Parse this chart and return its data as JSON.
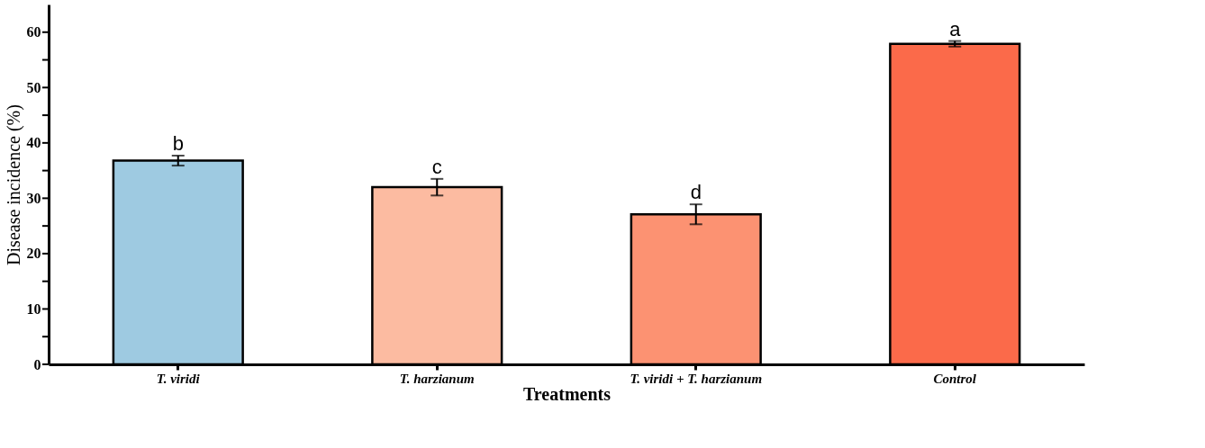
{
  "chart_data": {
    "type": "bar",
    "xlabel": "Treatments",
    "ylabel": "Disease incidence (%)",
    "categories": [
      "T. viridi",
      "T. harzianum",
      "T. viridi + T. harzianum",
      "Control"
    ],
    "values": [
      36.8,
      32.0,
      27.1,
      57.9
    ],
    "errors": [
      0.9,
      1.5,
      1.8,
      0.5
    ],
    "colors": [
      "#9ecae1",
      "#fcbba1",
      "#fc9272",
      "#fb6a4a"
    ],
    "ylim": [
      0,
      65
    ],
    "yticks": [
      0,
      {
        "value": 5,
        "label": null
      },
      10,
      {
        "value": 15,
        "label": null
      },
      20,
      {
        "value": 25,
        "label": null
      },
      30,
      {
        "value": 35,
        "label": null
      },
      40,
      {
        "value": 45,
        "label": null
      },
      50,
      {
        "value": 55,
        "label": null
      },
      60
    ],
    "grid": false,
    "annotations": [
      {
        "text": "b",
        "x": "T. viridi",
        "y": 37.7
      },
      {
        "text": "c",
        "x": "T. harzianum",
        "y": 33.5
      },
      {
        "text": "d",
        "x": "T. viridi + T. harzianum",
        "y": 28.9
      },
      {
        "text": "a",
        "x": "Control",
        "y": 58.4
      }
    ]
  }
}
